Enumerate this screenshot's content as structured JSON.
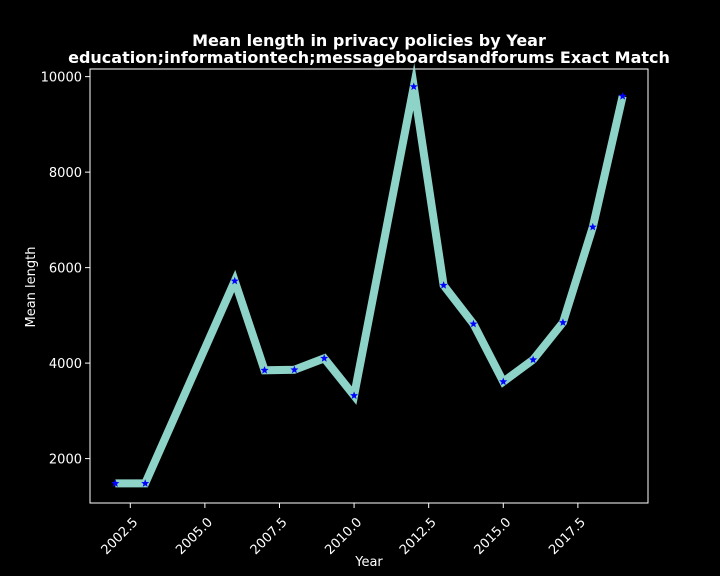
{
  "chart_data": {
    "type": "line",
    "title": "Mean length in privacy policies by Year",
    "subtitle": "education;informationtech;messageboardsandforums Exact Match",
    "xlabel": "Year",
    "ylabel": "Mean length",
    "xlim": [
      2001.15,
      2019.85
    ],
    "ylim": [
      1070,
      10160
    ],
    "xticks": [
      2002.5,
      2005.0,
      2007.5,
      2010.0,
      2012.5,
      2015.0,
      2017.5
    ],
    "xtick_labels": [
      "2002.5",
      "2005.0",
      "2007.5",
      "2010.0",
      "2012.5",
      "2015.0",
      "2017.5"
    ],
    "yticks": [
      2000,
      4000,
      6000,
      8000,
      10000
    ],
    "ytick_labels": [
      "2000",
      "4000",
      "6000",
      "8000",
      "10000"
    ],
    "grid": false,
    "line_color": "#8dd3c7",
    "marker_color": "#0000ff",
    "background": "#000000",
    "x": [
      2002,
      2003,
      2006,
      2007,
      2008,
      2009,
      2010,
      2012,
      2013,
      2014,
      2015,
      2016,
      2017,
      2018,
      2019
    ],
    "series": [
      {
        "values": [
          1480,
          1480,
          5720,
          3850,
          3860,
          4100,
          3320,
          9790,
          5630,
          4820,
          3610,
          4070,
          4850,
          6850,
          9590
        ]
      }
    ]
  }
}
